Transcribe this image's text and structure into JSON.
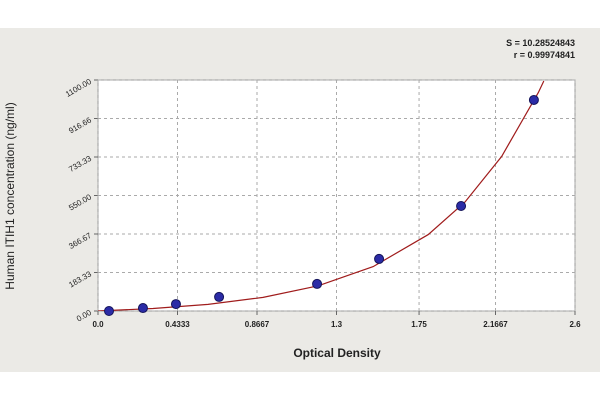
{
  "chart_data": {
    "type": "scatter",
    "annotations": [
      "S = 10.28524843",
      "r = 0.99974841"
    ],
    "x_label": "Optical Density",
    "y_label": "Human ITIH1 concentration (ng/ml)",
    "xlim": [
      0,
      2.6
    ],
    "ylim": [
      0,
      1100
    ],
    "xticks": [
      {
        "value": 0,
        "label": "0.0"
      },
      0.4333,
      0.8667,
      1.3,
      1.75,
      2.1667,
      2.6
    ],
    "yticks": [
      {
        "value": 0,
        "label": "0.00"
      },
      183.33,
      366.67,
      {
        "value": 550,
        "label": "550.00"
      },
      733.33,
      916.66,
      {
        "value": 1100,
        "label": "1100.00"
      }
    ],
    "grid": true,
    "series": [
      {
        "type": "scatter",
        "color": "#2b2ba6",
        "x": [
          0.06,
          0.245,
          0.425,
          0.66,
          1.194,
          1.532,
          1.979,
          2.376
        ],
        "values": [
          0,
          14,
          33,
          67,
          129,
          248,
          500,
          1005
        ]
      },
      {
        "type": "line",
        "color": "#a01c1c",
        "x": [
          0,
          0.3,
          0.6,
          0.9,
          1.2,
          1.5,
          1.8,
          2.0,
          2.2,
          2.4,
          2.43
        ],
        "values": [
          0,
          11.9,
          31.7,
          64.8,
          119.8,
          211.4,
          363.9,
          518.4,
          735.7,
          1040,
          1095
        ]
      }
    ]
  }
}
